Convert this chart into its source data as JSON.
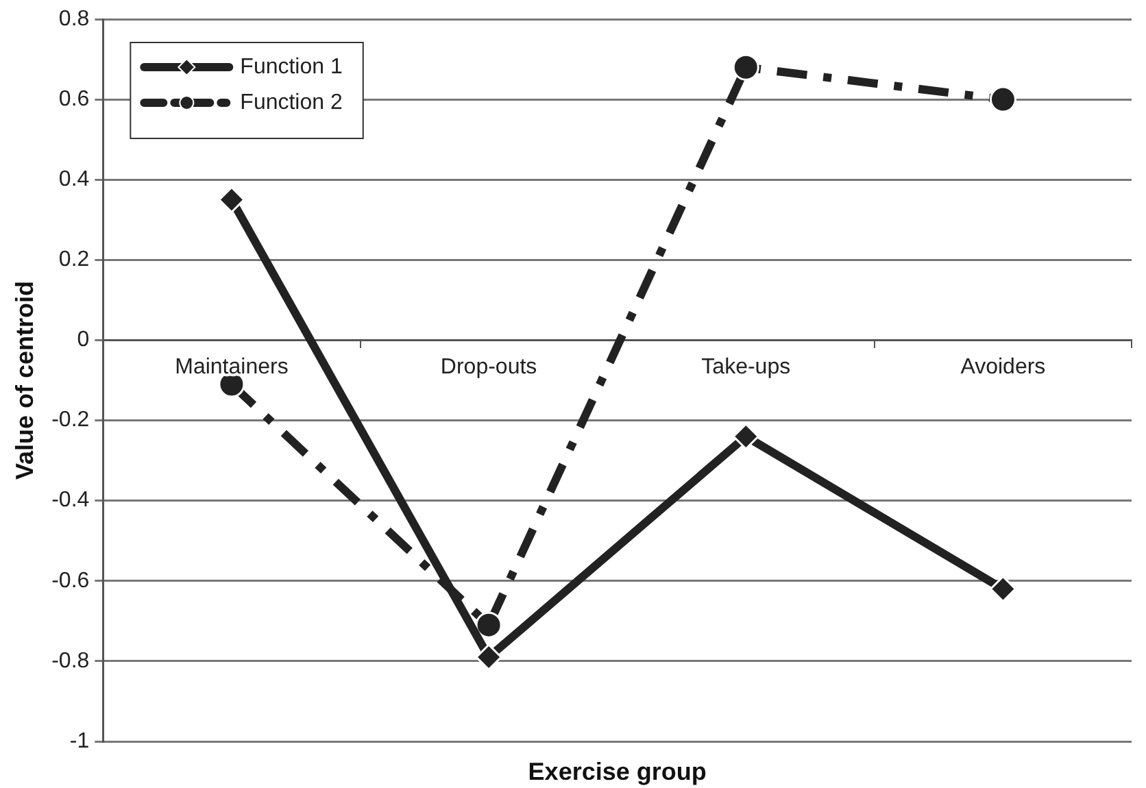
{
  "chart_data": {
    "type": "line",
    "xlabel": "Exercise group",
    "ylabel": "Value of centroid",
    "categories": [
      "Maintainers",
      "Drop-outs",
      "Take-ups",
      "Avoiders"
    ],
    "series": [
      {
        "name": "Function 1",
        "color": "#222222",
        "values": [
          0.35,
          -0.79,
          -0.24,
          -0.62
        ],
        "marker": "diamond",
        "line_style": "solid"
      },
      {
        "name": "Function 2",
        "color": "#222222",
        "values": [
          -0.11,
          -0.71,
          0.68,
          0.6
        ],
        "marker": "circle",
        "line_style": "dashed"
      }
    ],
    "ylim": [
      -1,
      0.8
    ],
    "yticks": [
      -1,
      -0.8,
      -0.6,
      -0.4,
      -0.2,
      0,
      0.2,
      0.4,
      0.6,
      0.8
    ],
    "grid": "y",
    "legend": "top left"
  }
}
